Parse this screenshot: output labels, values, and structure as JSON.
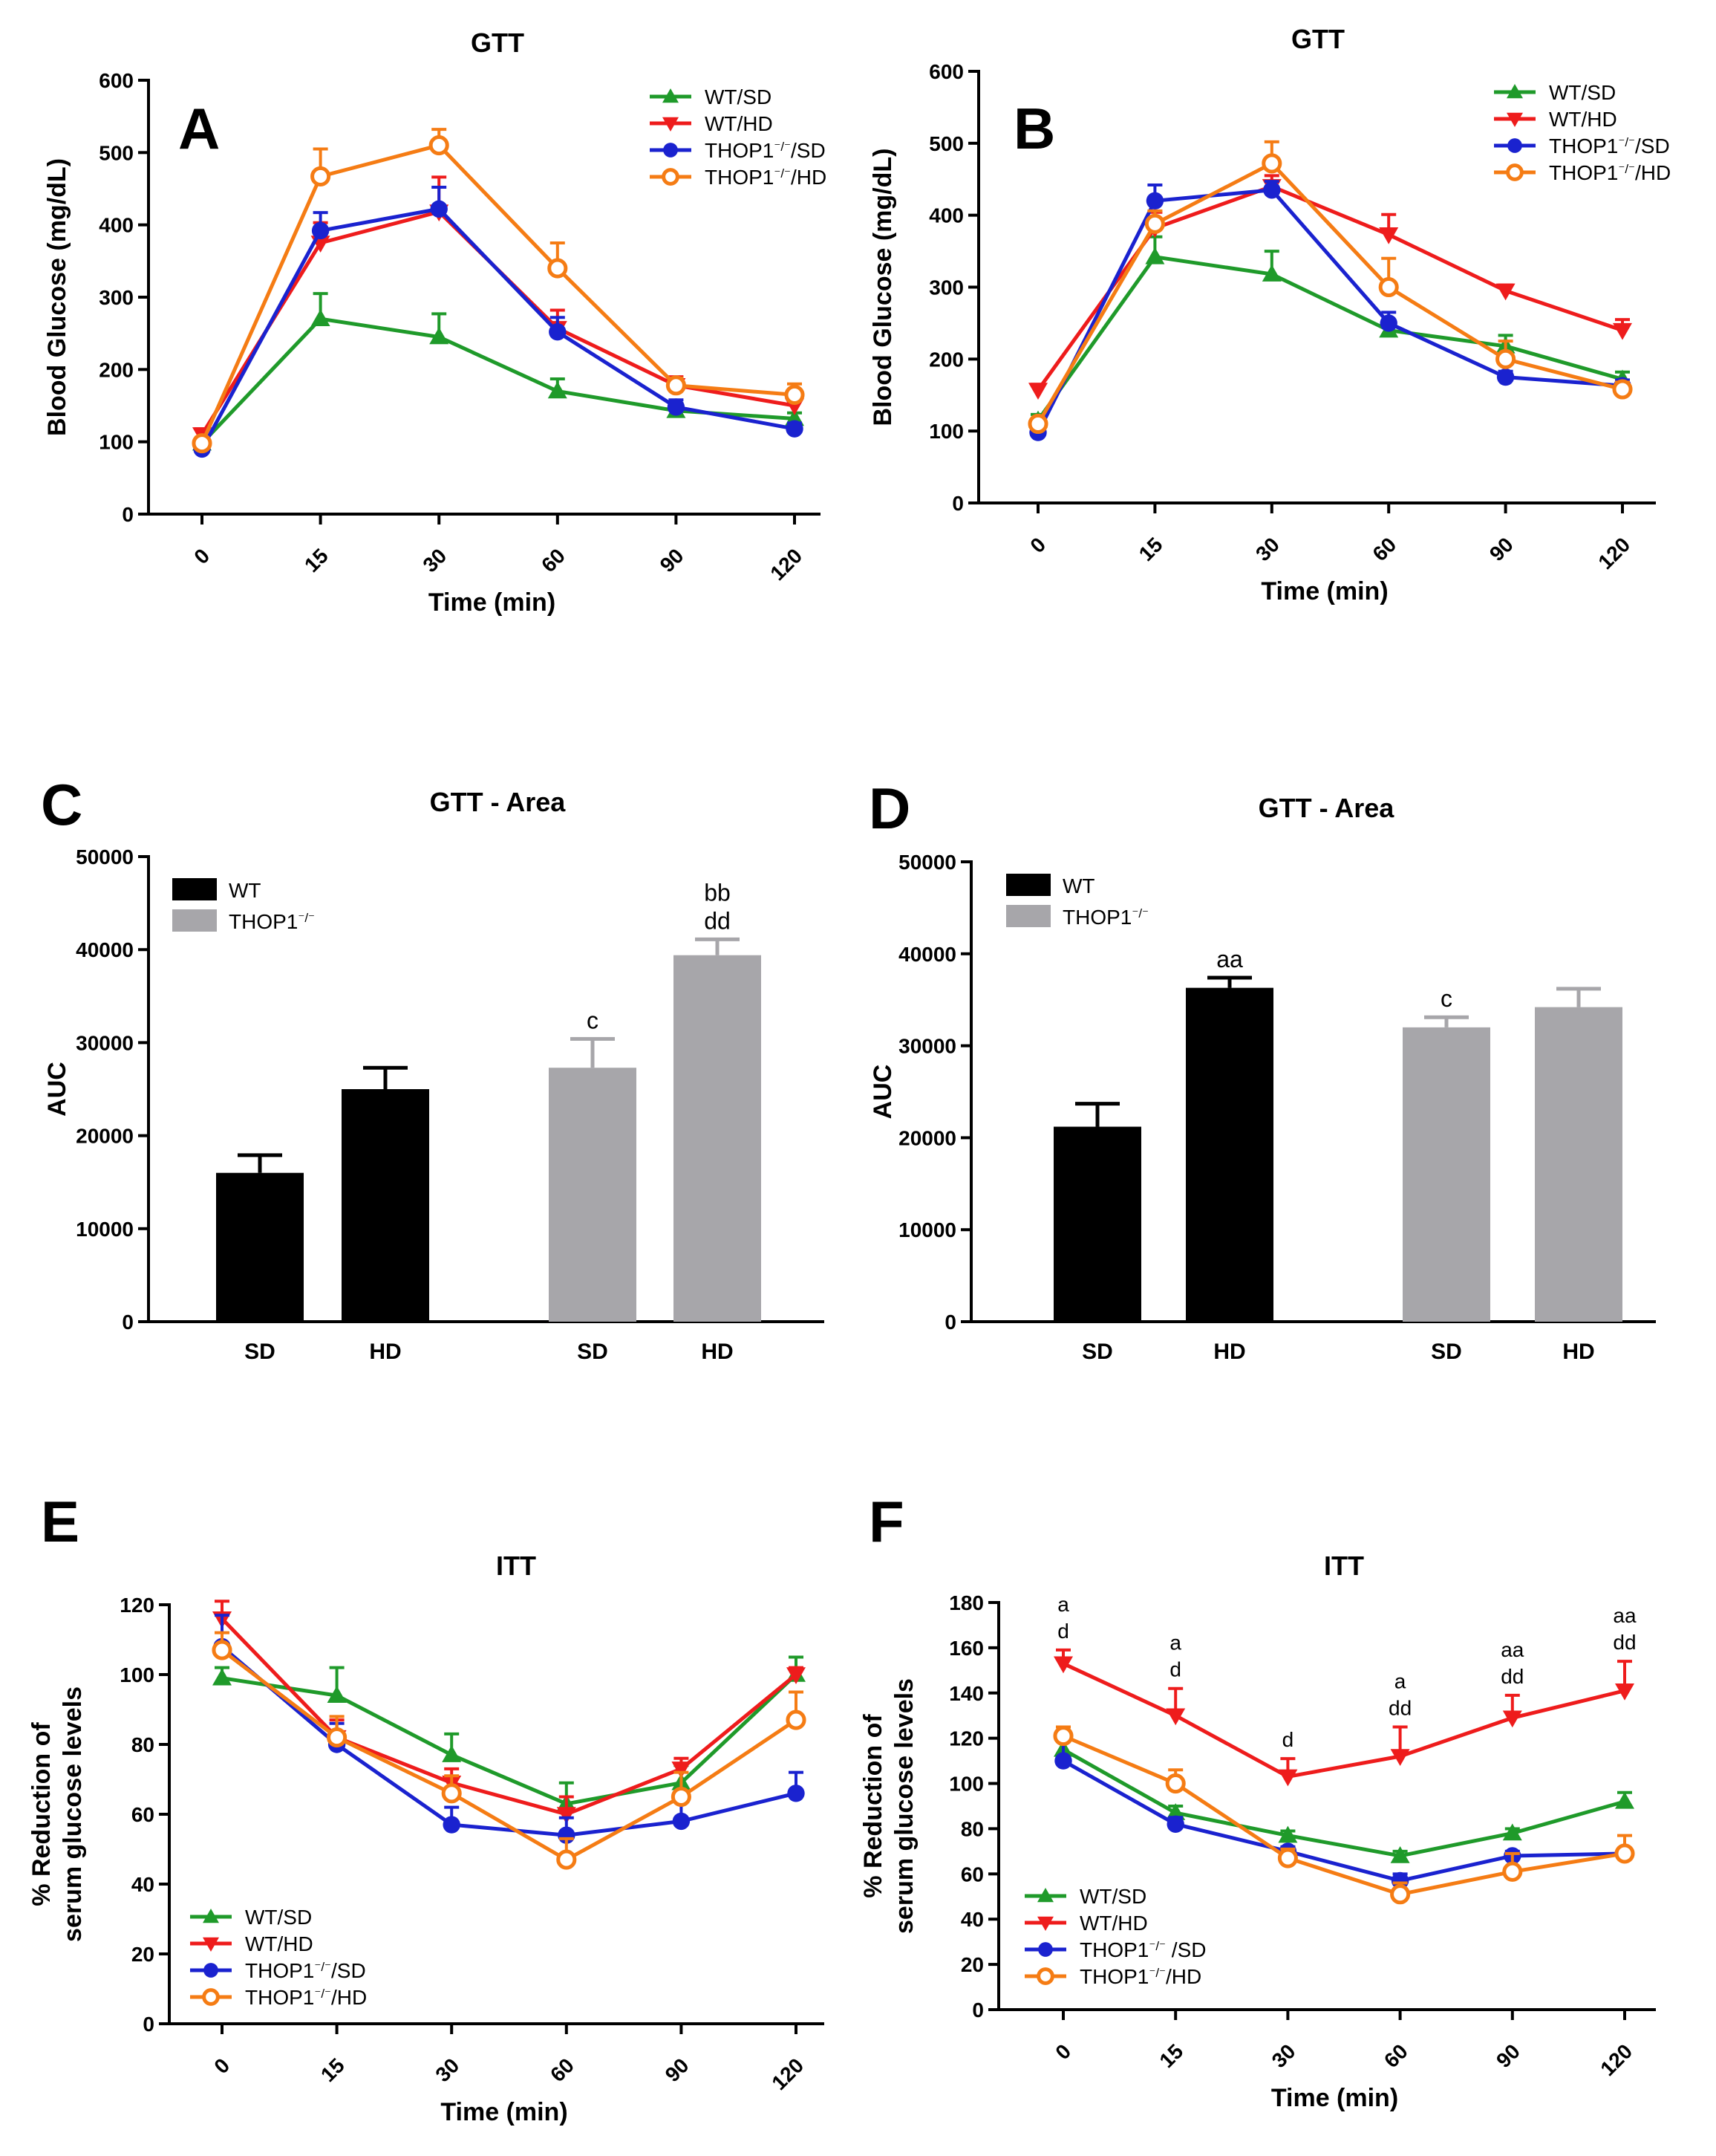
{
  "colors": {
    "wt_sd": "#1f9a2a",
    "wt_hd": "#ee1c1c",
    "thop_sd": "#1a22cf",
    "thop_hd": "#f57c14",
    "wt_bar": "#000000",
    "thop_bar": "#a7a6aa",
    "axis": "#000000"
  },
  "chart_data": [
    {
      "panel": "A",
      "type": "line",
      "title": "GTT",
      "xlabel": "Time (min)",
      "ylabel": "Blood Glucose (mg/dL)",
      "categories": [
        "0",
        "15",
        "30",
        "60",
        "90",
        "120"
      ],
      "ylim": [
        0,
        600
      ],
      "yticks": [
        "0",
        "100",
        "200",
        "300",
        "400",
        "500",
        "600"
      ],
      "legend_position": "top-right",
      "series": [
        {
          "name": "WT/SD",
          "marker": "triangle-up",
          "color": "#1f9a2a",
          "values": [
            98,
            270,
            245,
            170,
            143,
            132
          ],
          "errors": [
            8,
            35,
            32,
            17,
            10,
            8
          ]
        },
        {
          "name": "WT/HD",
          "marker": "triangle-down",
          "color": "#ee1c1c",
          "values": [
            110,
            375,
            418,
            257,
            178,
            150
          ],
          "errors": [
            8,
            28,
            48,
            25,
            12,
            12
          ]
        },
        {
          "name": "THOP1⁻/⁻/SD",
          "marker": "circle",
          "color": "#1a22cf",
          "values": [
            90,
            392,
            422,
            252,
            148,
            118
          ],
          "errors": [
            6,
            25,
            30,
            20,
            10,
            8
          ]
        },
        {
          "name": "THOP1⁻/⁻/HD",
          "marker": "open-circle",
          "color": "#f57c14",
          "values": [
            98,
            467,
            510,
            340,
            178,
            165
          ],
          "errors": [
            8,
            38,
            22,
            35,
            10,
            15
          ]
        }
      ]
    },
    {
      "panel": "B",
      "type": "line",
      "title": "GTT",
      "xlabel": "Time (min)",
      "ylabel": "Blood Glucose (mg/dL)",
      "categories": [
        "0",
        "15",
        "30",
        "60",
        "90",
        "120"
      ],
      "ylim": [
        0,
        600
      ],
      "yticks": [
        "0",
        "100",
        "200",
        "300",
        "400",
        "500",
        "600"
      ],
      "legend_position": "top-right",
      "series": [
        {
          "name": "WT/SD",
          "marker": "triangle-up",
          "color": "#1f9a2a",
          "values": [
            115,
            342,
            318,
            240,
            218,
            172
          ],
          "errors": [
            8,
            28,
            32,
            12,
            15,
            10
          ]
        },
        {
          "name": "WT/HD",
          "marker": "triangle-down",
          "color": "#ee1c1c",
          "values": [
            157,
            382,
            440,
            373,
            295,
            240
          ],
          "errors": [
            8,
            22,
            15,
            28,
            8,
            15
          ]
        },
        {
          "name": "THOP1⁻/⁻/SD",
          "marker": "circle",
          "color": "#1a22cf",
          "values": [
            98,
            420,
            435,
            250,
            175,
            163
          ],
          "errors": [
            6,
            22,
            12,
            15,
            8,
            8
          ]
        },
        {
          "name": "THOP1⁻/⁻/HD",
          "marker": "open-circle",
          "color": "#f57c14",
          "values": [
            110,
            388,
            472,
            300,
            200,
            158
          ],
          "errors": [
            8,
            18,
            30,
            40,
            25,
            10
          ]
        }
      ]
    },
    {
      "panel": "C",
      "type": "bar",
      "title": "GTT - Area",
      "xlabel": "",
      "ylabel": "AUC",
      "categories": [
        "SD",
        "HD",
        "SD",
        "HD"
      ],
      "groups": [
        "WT",
        "WT",
        "THOP1⁻/⁻",
        "THOP1⁻/⁻"
      ],
      "ylim": [
        0,
        50000
      ],
      "yticks": [
        "0",
        "10000",
        "20000",
        "30000",
        "40000",
        "50000"
      ],
      "legend": [
        "WT",
        "THOP1⁻/⁻"
      ],
      "legend_position": "top-left",
      "values": [
        16000,
        25000,
        27300,
        39400
      ],
      "errors": [
        1900,
        2300,
        3100,
        1700
      ],
      "annotations": [
        "",
        "",
        "c",
        "bb\ndd"
      ]
    },
    {
      "panel": "D",
      "type": "bar",
      "title": "GTT - Area",
      "xlabel": "",
      "ylabel": "AUC",
      "categories": [
        "SD",
        "HD",
        "SD",
        "HD"
      ],
      "groups": [
        "WT",
        "WT",
        "THOP1⁻/⁻",
        "THOP1⁻/⁻"
      ],
      "ylim": [
        0,
        50000
      ],
      "yticks": [
        "0",
        "10000",
        "20000",
        "30000",
        "40000",
        "50000"
      ],
      "legend": [
        "WT",
        "THOP1⁻/⁻"
      ],
      "legend_position": "top-left",
      "values": [
        21200,
        36300,
        32000,
        34200
      ],
      "errors": [
        2500,
        1100,
        1100,
        2000
      ],
      "annotations": [
        "",
        "aa",
        "c",
        ""
      ]
    },
    {
      "panel": "E",
      "type": "line",
      "title": "ITT",
      "xlabel": "Time (min)",
      "ylabel": "% Reduction of\nserum glucose levels",
      "categories": [
        "0",
        "15",
        "30",
        "60",
        "90",
        "120"
      ],
      "ylim": [
        0,
        120
      ],
      "yticks": [
        "0",
        "20",
        "40",
        "60",
        "80",
        "100",
        "120"
      ],
      "legend_position": "bottom-left",
      "series": [
        {
          "name": "WT/SD",
          "marker": "triangle-up",
          "color": "#1f9a2a",
          "values": [
            99,
            94,
            77,
            63,
            69,
            100
          ],
          "errors": [
            3,
            8,
            6,
            6,
            5,
            5
          ]
        },
        {
          "name": "WT/HD",
          "marker": "triangle-down",
          "color": "#ee1c1c",
          "values": [
            116,
            82,
            69,
            60,
            73,
            100
          ],
          "errors": [
            5,
            5,
            4,
            5,
            3,
            2
          ]
        },
        {
          "name": "THOP1⁻/⁻/SD",
          "marker": "circle",
          "color": "#1a22cf",
          "values": [
            108,
            80,
            57,
            54,
            58,
            66
          ],
          "errors": [
            9,
            6,
            5,
            5,
            6,
            6
          ]
        },
        {
          "name": "THOP1⁻/⁻/HD",
          "marker": "open-circle",
          "color": "#f57c14",
          "values": [
            107,
            82,
            66,
            47,
            65,
            87
          ],
          "errors": [
            5,
            6,
            5,
            6,
            7,
            8
          ]
        }
      ]
    },
    {
      "panel": "F",
      "type": "line",
      "title": "ITT",
      "xlabel": "Time (min)",
      "ylabel": "% Reduction of\nserum glucose levels",
      "categories": [
        "0",
        "15",
        "30",
        "60",
        "90",
        "120"
      ],
      "ylim": [
        0,
        180
      ],
      "yticks": [
        "0",
        "20",
        "40",
        "60",
        "80",
        "100",
        "120",
        "140",
        "160",
        "180"
      ],
      "legend_position": "bottom-left",
      "annotations": [
        "a\nd",
        "a\nd",
        "d",
        "a\ndd",
        "aa\ndd",
        "aa\ndd"
      ],
      "series": [
        {
          "name": "WT/SD",
          "marker": "triangle-up",
          "color": "#1f9a2a",
          "values": [
            115,
            87,
            77,
            68,
            78,
            92
          ],
          "errors": [
            5,
            3,
            2,
            2,
            2,
            4
          ]
        },
        {
          "name": "WT/HD",
          "marker": "triangle-down",
          "color": "#ee1c1c",
          "values": [
            153,
            130,
            103,
            112,
            129,
            141
          ],
          "errors": [
            6,
            12,
            8,
            13,
            10,
            13
          ]
        },
        {
          "name": "THOP1⁻/⁻ /SD",
          "marker": "circle",
          "color": "#1a22cf",
          "values": [
            110,
            82,
            70,
            57,
            68,
            69
          ],
          "errors": [
            13,
            3,
            2,
            3,
            2,
            2
          ]
        },
        {
          "name": "THOP1⁻/⁻/HD",
          "marker": "open-circle",
          "color": "#f57c14",
          "values": [
            121,
            100,
            67,
            51,
            61,
            69
          ],
          "errors": [
            4,
            6,
            4,
            5,
            8,
            8
          ]
        }
      ]
    }
  ]
}
